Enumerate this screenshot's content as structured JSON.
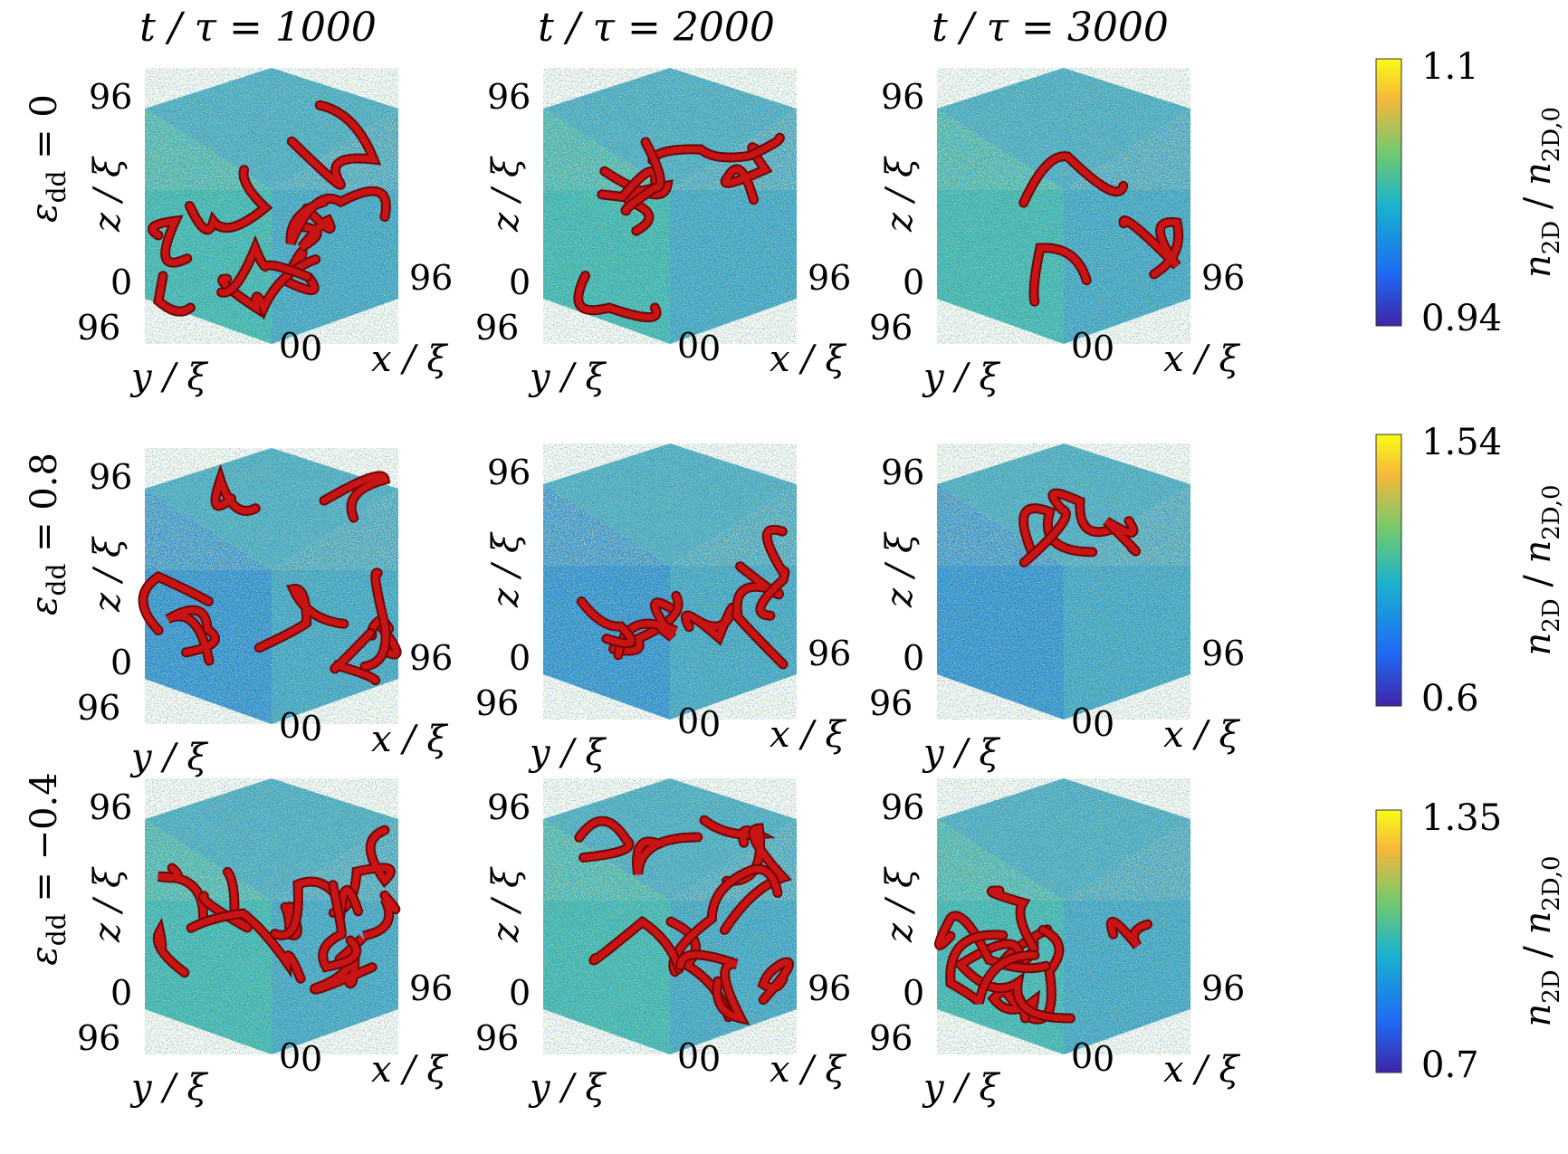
{
  "columns": [
    {
      "label": "t / τ = 1000"
    },
    {
      "label": "t / τ = 2000"
    },
    {
      "label": "t / τ = 3000"
    }
  ],
  "rows": [
    {
      "label": "ε",
      "sub": "dd",
      "value": " = 0",
      "colorbar": {
        "max": "1.1",
        "min": "0.94"
      }
    },
    {
      "label": "ε",
      "sub": "dd",
      "value": " = 0.8",
      "colorbar": {
        "max": "1.54",
        "min": "0.6"
      }
    },
    {
      "label": "ε",
      "sub": "dd",
      "value": " = −0.4",
      "colorbar": {
        "max": "1.35",
        "min": "0.7"
      }
    }
  ],
  "axes": {
    "z": "z / ξ",
    "y": "y / ξ",
    "x": "x / ξ",
    "max_tick": "96",
    "zero_tick": "0"
  },
  "colorbar_label": {
    "main": "n",
    "sub": "2D",
    "sep": " / ",
    "main2": "n",
    "sub2": "2D,0"
  },
  "colors": {
    "vortex": "#c81414",
    "vortex_dark": "#6e0606",
    "field_blue": "#1f8ad4",
    "field_cyan": "#2cb3b0",
    "field_yellow": "#d8c23a",
    "colormap": [
      "#3e26a8",
      "#1f6cf5",
      "#1ab2cd",
      "#72c96d",
      "#f6b73a",
      "#f9fb15"
    ]
  }
}
